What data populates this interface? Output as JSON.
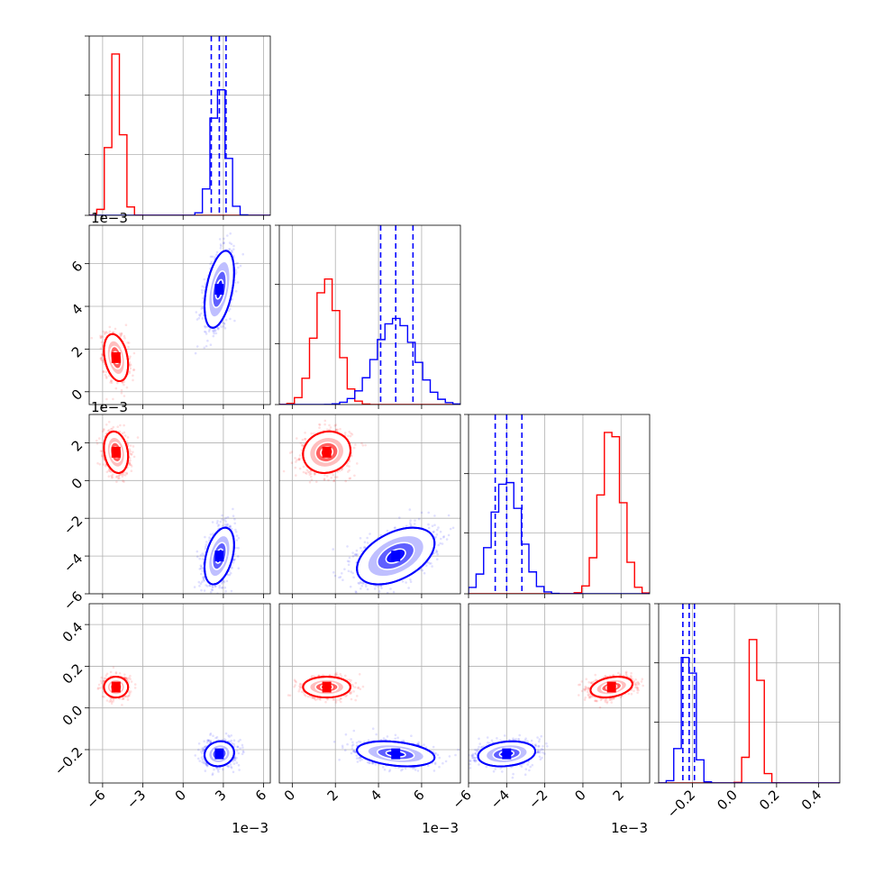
{
  "chart_data": {
    "type": "corner",
    "grid": true,
    "series_colors": [
      "#ff0000",
      "#0000ff"
    ],
    "quantile_line_color": "#0000ff",
    "parameters": [
      {
        "range": [
          -7.0,
          6.5
        ],
        "scale": 0.001,
        "ticks": [
          -6,
          -3,
          0,
          3,
          6
        ],
        "tick_labels": [
          "−6",
          "−3",
          "0",
          "3",
          "6"
        ],
        "offset": "1e−3"
      },
      {
        "range": [
          -0.6,
          7.8
        ],
        "scale": 0.001,
        "ticks": [
          0,
          2,
          4,
          6
        ],
        "tick_labels": [
          "0",
          "2",
          "4",
          "6"
        ],
        "offset": "1e−3"
      },
      {
        "range": [
          -6.0,
          3.5
        ],
        "scale": 0.001,
        "ticks": [
          -6,
          -4,
          -2,
          0,
          2
        ],
        "tick_labels": [
          "−6",
          "−4",
          "−2",
          "0",
          "2"
        ],
        "offset": "1e−3"
      },
      {
        "range": [
          -0.36,
          0.5
        ],
        "scale": 1,
        "ticks": [
          -0.2,
          0.0,
          0.2,
          0.4
        ],
        "tick_labels": [
          "−0.2",
          "0.0",
          "0.2",
          "0.4"
        ],
        "offset": ""
      }
    ],
    "series": [
      {
        "color": "#ff0000",
        "mean": [
          -5.0,
          1.6,
          1.5,
          0.1
        ],
        "sd": [
          0.45,
          0.55,
          0.55,
          0.025
        ]
      },
      {
        "color": "#0000ff",
        "mean": [
          2.7,
          4.8,
          -4.0,
          -0.22
        ],
        "sd": [
          0.55,
          0.9,
          0.75,
          0.03
        ],
        "quantiles": [
          [
            2.1,
            2.7,
            3.2
          ],
          [
            4.1,
            4.8,
            5.6
          ],
          [
            -4.6,
            -4.0,
            -3.2
          ],
          [
            -0.245,
            -0.215,
            -0.19
          ]
        ]
      }
    ],
    "correlations": [
      {
        "series": 0,
        "i": 1,
        "j": 0,
        "rho": -0.3
      },
      {
        "series": 0,
        "i": 2,
        "j": 0,
        "rho": -0.2
      },
      {
        "series": 0,
        "i": 2,
        "j": 1,
        "rho": 0.1
      },
      {
        "series": 0,
        "i": 3,
        "j": 0,
        "rho": 0.0
      },
      {
        "series": 0,
        "i": 3,
        "j": 1,
        "rho": 0.0
      },
      {
        "series": 0,
        "i": 3,
        "j": 2,
        "rho": 0.3
      },
      {
        "series": 1,
        "i": 1,
        "j": 0,
        "rho": 0.45
      },
      {
        "series": 1,
        "i": 2,
        "j": 0,
        "rho": 0.4
      },
      {
        "series": 1,
        "i": 2,
        "j": 1,
        "rho": 0.45
      },
      {
        "series": 1,
        "i": 3,
        "j": 0,
        "rho": 0.1
      },
      {
        "series": 1,
        "i": 3,
        "j": 1,
        "rho": -0.3
      },
      {
        "series": 1,
        "i": 3,
        "j": 2,
        "rho": 0.2
      }
    ],
    "diagonal_peak_heights": [
      [
        0.9,
        0.7,
        0.9,
        0.8
      ],
      [
        0.7,
        0.48,
        0.62,
        0.7
      ]
    ]
  }
}
